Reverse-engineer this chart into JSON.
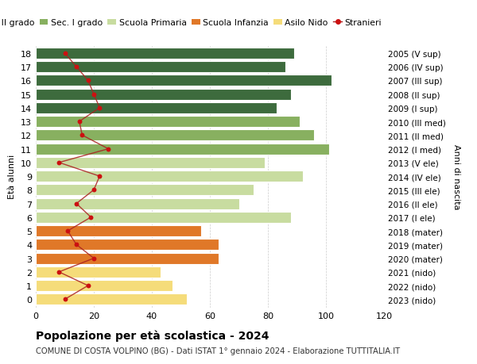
{
  "ages": [
    0,
    1,
    2,
    3,
    4,
    5,
    6,
    7,
    8,
    9,
    10,
    11,
    12,
    13,
    14,
    15,
    16,
    17,
    18
  ],
  "anni_nascita": [
    "2023 (nido)",
    "2022 (nido)",
    "2021 (nido)",
    "2020 (mater)",
    "2019 (mater)",
    "2018 (mater)",
    "2017 (I ele)",
    "2016 (II ele)",
    "2015 (III ele)",
    "2014 (IV ele)",
    "2013 (V ele)",
    "2012 (I med)",
    "2011 (II med)",
    "2010 (III med)",
    "2009 (I sup)",
    "2008 (II sup)",
    "2007 (III sup)",
    "2006 (IV sup)",
    "2005 (V sup)"
  ],
  "bar_values": [
    52,
    47,
    43,
    63,
    63,
    57,
    88,
    70,
    75,
    92,
    79,
    101,
    96,
    91,
    83,
    88,
    102,
    86,
    89
  ],
  "bar_colors": [
    "#f5dc7a",
    "#f5dc7a",
    "#f5dc7a",
    "#e07828",
    "#e07828",
    "#e07828",
    "#c8dca0",
    "#c8dca0",
    "#c8dca0",
    "#c8dca0",
    "#c8dca0",
    "#88b060",
    "#88b060",
    "#88b060",
    "#3d6b3d",
    "#3d6b3d",
    "#3d6b3d",
    "#3d6b3d",
    "#3d6b3d"
  ],
  "stranieri": [
    10,
    18,
    8,
    20,
    14,
    11,
    19,
    14,
    20,
    22,
    8,
    25,
    16,
    15,
    22,
    20,
    18,
    14,
    10
  ],
  "title": "Popolazione per età scolastica - 2024",
  "subtitle": "COMUNE DI COSTA VOLPINO (BG) - Dati ISTAT 1° gennaio 2024 - Elaborazione TUTTITALIA.IT",
  "ylabel_left": "Età alunni",
  "ylabel_right": "Anni di nascita",
  "legend_labels": [
    "Sec. II grado",
    "Sec. I grado",
    "Scuola Primaria",
    "Scuola Infanzia",
    "Asilo Nido",
    "Stranieri"
  ],
  "legend_colors": [
    "#3d6b3d",
    "#88b060",
    "#c8dca0",
    "#e07828",
    "#f5dc7a",
    "#cc1010"
  ],
  "xlim": [
    0,
    120
  ],
  "xticks": [
    0,
    20,
    40,
    60,
    80,
    100,
    120
  ],
  "background_color": "#ffffff",
  "grid_color": "#cccccc",
  "stranieri_line_color": "#aa2020",
  "stranieri_dot_color": "#cc1010"
}
